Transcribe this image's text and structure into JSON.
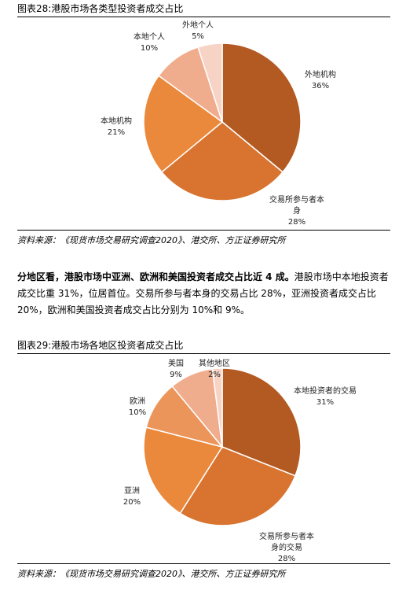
{
  "figures": [
    {
      "caption": "图表28:港股市场各类型投资者成交占比",
      "source": "资料来源：《现货市场交易研究调查2020》、港交所、方正证券研究所"
    },
    {
      "caption": "图表29:港股市场各地区投资者成交占比",
      "source": "资料来源：《现货市场交易研究调查2020》、港交所、方正证券研究所"
    }
  ],
  "paragraph": {
    "bold": "分地区看，港股市场中亚洲、欧洲和美国投资者成交占比近 4 成。",
    "text": "港股市场中本地投资者成交比重 31%，位居首位。交易所参与者本身的交易占比 28%，亚洲投资者成交占比 20%，欧洲和美国投资者成交占比分别为 10%和 9%。"
  },
  "chart_data": [
    {
      "type": "pie",
      "categories": [
        "外地机构",
        "交易所参与者本身",
        "本地机构",
        "本地个人",
        "外地个人"
      ],
      "values": [
        36,
        28,
        21,
        10,
        5
      ],
      "value_labels": [
        "36%",
        "28%",
        "21%",
        "10%",
        "5%"
      ],
      "colors": [
        "#b35a22",
        "#d8742f",
        "#ea883b",
        "#f0ad8d",
        "#f6d3c5"
      ]
    },
    {
      "type": "pie",
      "categories": [
        "本地投资者的交易",
        "交易所参与者本身的交易",
        "亚洲",
        "欧洲",
        "美国",
        "其他地区"
      ],
      "values": [
        31,
        28,
        20,
        10,
        9,
        2
      ],
      "value_labels": [
        "31%",
        "28%",
        "20%",
        "10%",
        "9%",
        "2%"
      ],
      "colors": [
        "#b35a22",
        "#d8742f",
        "#ea883b",
        "#ec955a",
        "#f0ad8d",
        "#f6d3c5"
      ]
    }
  ]
}
